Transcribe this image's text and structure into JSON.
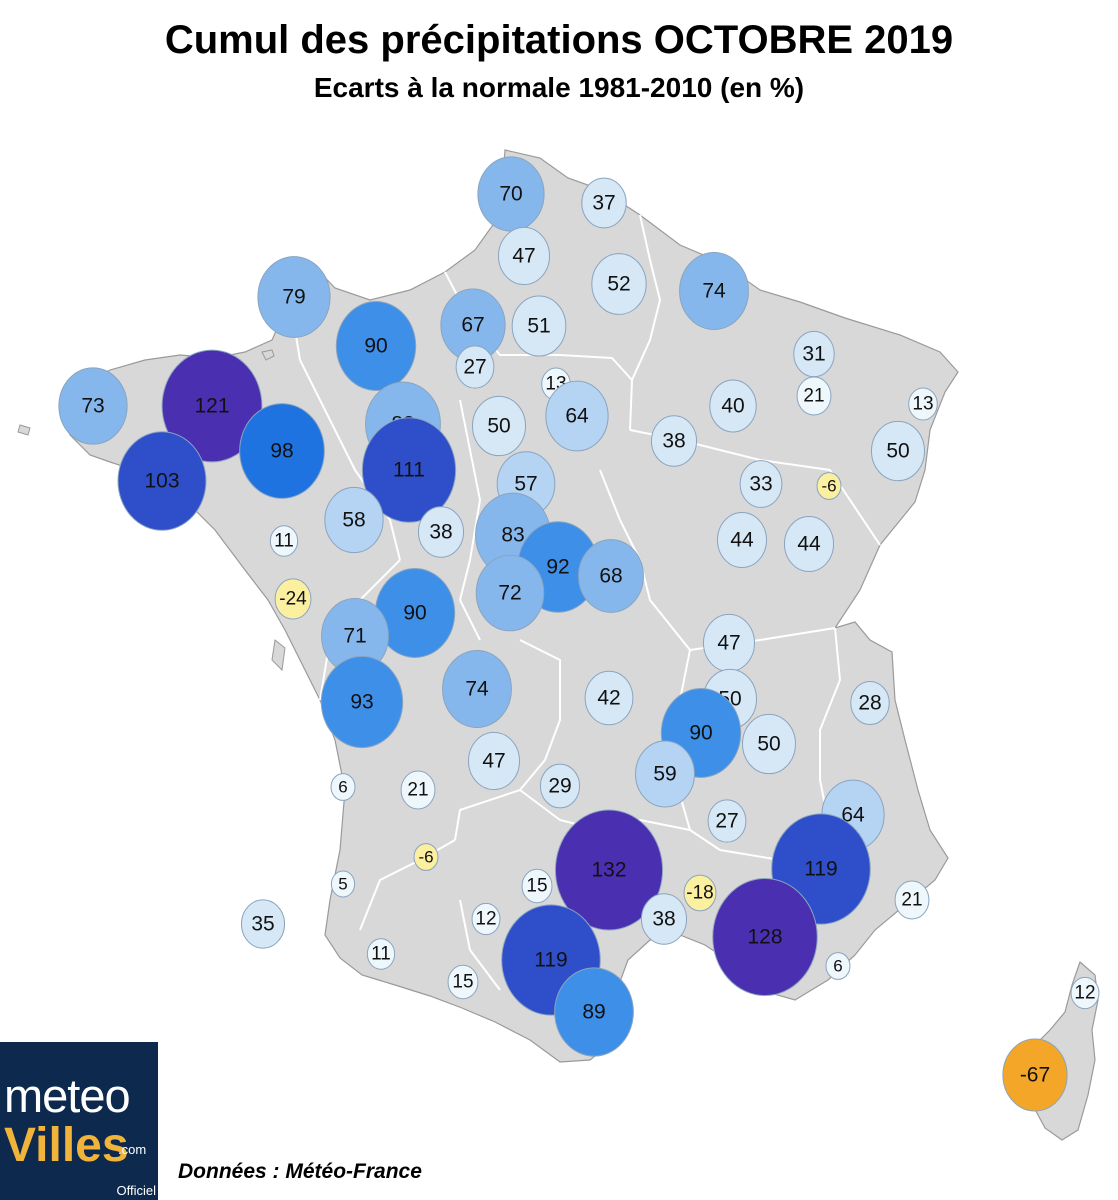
{
  "map": {
    "title": "Cumul des précipitations OCTOBRE 2019",
    "subtitle": "Ecarts à la normale 1981-2010 (en %)",
    "source": "Données : Météo-France",
    "colors": {
      "land": "#d8d8d8",
      "border": "#ffffff",
      "outline": "#9a9a9a",
      "bubble_stroke": "#8aa4bf"
    },
    "color_scale": [
      {
        "min": 120,
        "color": "#4a2fb0"
      },
      {
        "min": 100,
        "color": "#2f4fca"
      },
      {
        "min": 95,
        "color": "#1f73e0"
      },
      {
        "min": 85,
        "color": "#3e8fe8"
      },
      {
        "min": 65,
        "color": "#86b7ec"
      },
      {
        "min": 55,
        "color": "#b5d3f2"
      },
      {
        "min": 25,
        "color": "#d6e8f6"
      },
      {
        "min": 0,
        "color": "#eef7fc"
      },
      {
        "min": -30,
        "color": "#fbf0a0"
      },
      {
        "min": -100,
        "color": "#f3a627"
      }
    ],
    "stations": [
      {
        "value": "70"
      },
      {
        "value": "37"
      },
      {
        "value": "47"
      },
      {
        "value": "52"
      },
      {
        "value": "74"
      },
      {
        "value": "79"
      },
      {
        "value": "67"
      },
      {
        "value": "51"
      },
      {
        "value": "90"
      },
      {
        "value": "27"
      },
      {
        "value": "31"
      },
      {
        "value": "73"
      },
      {
        "value": "121"
      },
      {
        "value": "13"
      },
      {
        "value": "21"
      },
      {
        "value": "13"
      },
      {
        "value": "64"
      },
      {
        "value": "40"
      },
      {
        "value": "83"
      },
      {
        "value": "50"
      },
      {
        "value": "98"
      },
      {
        "value": "38"
      },
      {
        "value": "50"
      },
      {
        "value": "111"
      },
      {
        "value": "103"
      },
      {
        "value": "57"
      },
      {
        "value": "33"
      },
      {
        "value": "-6"
      },
      {
        "value": "58"
      },
      {
        "value": "38"
      },
      {
        "value": "83"
      },
      {
        "value": "11"
      },
      {
        "value": "92"
      },
      {
        "value": "44"
      },
      {
        "value": "44"
      },
      {
        "value": "68"
      },
      {
        "value": "-24"
      },
      {
        "value": "72"
      },
      {
        "value": "90"
      },
      {
        "value": "71"
      },
      {
        "value": "47"
      },
      {
        "value": "50"
      },
      {
        "value": "93"
      },
      {
        "value": "74"
      },
      {
        "value": "42"
      },
      {
        "value": "28"
      },
      {
        "value": "90"
      },
      {
        "value": "50"
      },
      {
        "value": "47"
      },
      {
        "value": "6"
      },
      {
        "value": "21"
      },
      {
        "value": "29"
      },
      {
        "value": "59"
      },
      {
        "value": "64"
      },
      {
        "value": "27"
      },
      {
        "value": "-6"
      },
      {
        "value": "132"
      },
      {
        "value": "119"
      },
      {
        "value": "5"
      },
      {
        "value": "15"
      },
      {
        "value": "-18"
      },
      {
        "value": "35"
      },
      {
        "value": "12"
      },
      {
        "value": "38"
      },
      {
        "value": "21"
      },
      {
        "value": "128"
      },
      {
        "value": "11"
      },
      {
        "value": "119"
      },
      {
        "value": "6"
      },
      {
        "value": "15"
      },
      {
        "value": "12"
      },
      {
        "value": "89"
      },
      {
        "value": "-67"
      }
    ]
  },
  "logo": {
    "line1": "meteo",
    "line2": "Villes",
    "domain": ".com",
    "tag": "Officiel"
  }
}
